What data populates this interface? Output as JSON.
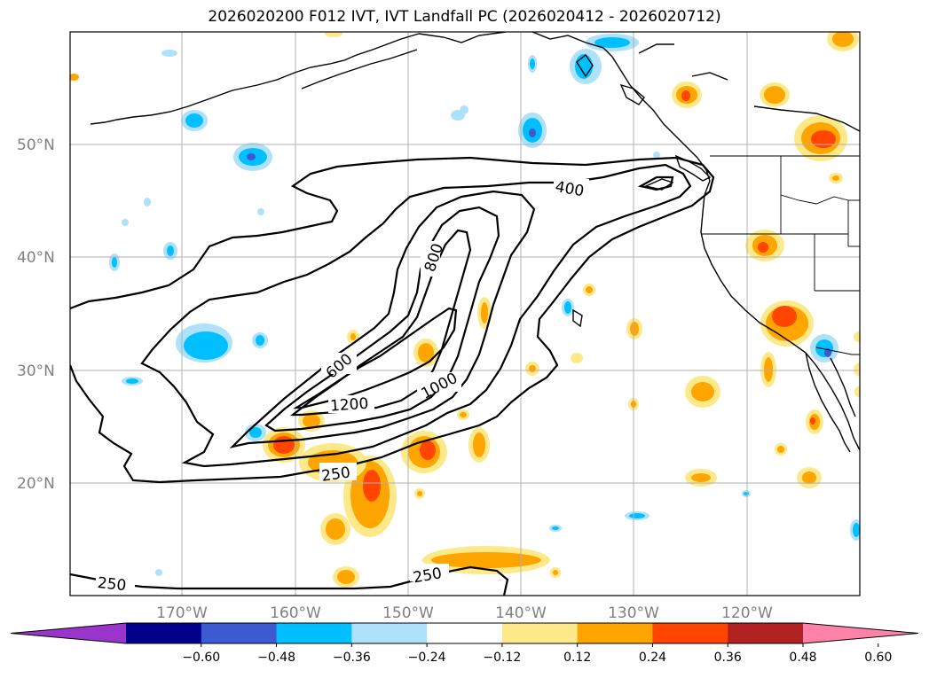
{
  "title": "2026020200 F012 IVT, IVT Landfall PC (2026020412 - 2026020712)",
  "map": {
    "lat_labels": [
      "50°N",
      "40°N",
      "30°N",
      "20°N"
    ],
    "lon_labels": [
      "170°W",
      "160°W",
      "150°W",
      "140°W",
      "130°W",
      "120°W"
    ],
    "contour_levels": [
      "250",
      "400",
      "600",
      "800",
      "1000",
      "1200"
    ],
    "contour_labels": [
      {
        "text": "400"
      },
      {
        "text": "800"
      },
      {
        "text": "600"
      },
      {
        "text": "1000"
      },
      {
        "text": "1200"
      },
      {
        "text": "250"
      },
      {
        "text": "250"
      },
      {
        "text": "250"
      }
    ]
  },
  "colorbar": {
    "ticks": [
      "−0.60",
      "−0.48",
      "−0.36",
      "−0.24",
      "−0.12",
      "0.12",
      "0.24",
      "0.36",
      "0.48",
      "0.60"
    ],
    "colors": [
      "#9a35cc",
      "#00008b",
      "#3c5ad2",
      "#00bfff",
      "#aee1fa",
      "#ffffff",
      "#fde98a",
      "#ffa500",
      "#ff4500",
      "#b22222",
      "#ff82a9"
    ]
  }
}
